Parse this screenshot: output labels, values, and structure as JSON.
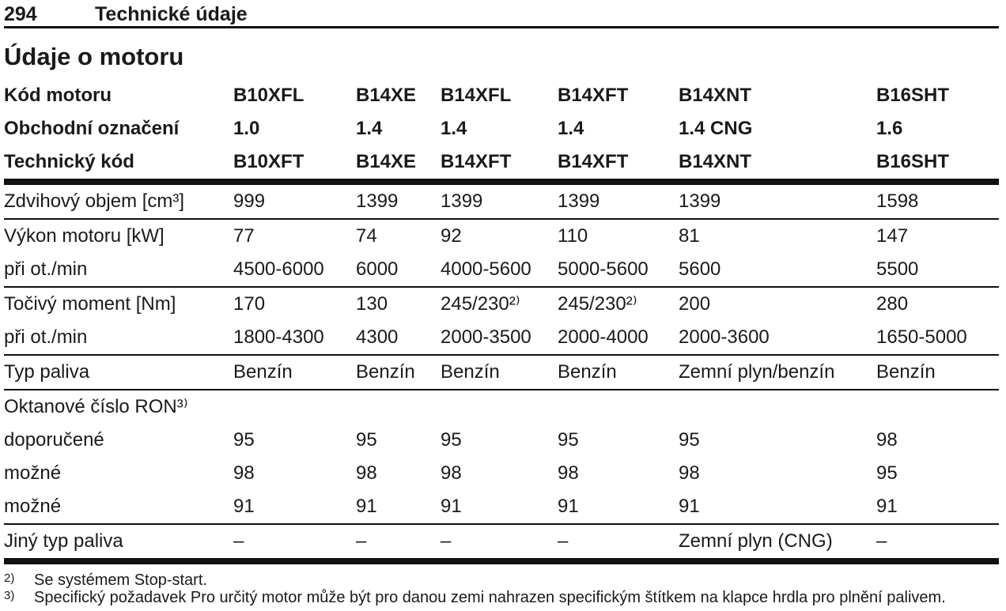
{
  "colors": {
    "text": "#1a1a1a",
    "background": "#ffffff",
    "rule": "#111111"
  },
  "page": {
    "number": "294",
    "chapter": "Technické údaje",
    "section_title": "Údaje o motoru"
  },
  "table": {
    "header_rows": [
      {
        "label": "Kód motoru",
        "values": [
          "B10XFL",
          "B14XE",
          "B14XFL",
          "B14XFT",
          "B14XNT",
          "B16SHT"
        ],
        "rule_after": "none"
      },
      {
        "label": "Obchodní označení",
        "values": [
          "1.0",
          "1.4",
          "1.4",
          "1.4",
          "1.4 CNG",
          "1.6"
        ],
        "rule_after": "none"
      },
      {
        "label": "Technický kód",
        "values": [
          "B10XFT",
          "B14XE",
          "B14XFT",
          "B14XFT",
          "B14XNT",
          "B16SHT"
        ],
        "rule_after": "thick"
      }
    ],
    "rows": [
      {
        "label": "Zdvihový objem [cm³]",
        "values": [
          "999",
          "1399",
          "1399",
          "1399",
          "1399",
          "1598"
        ],
        "rule_after": "thin"
      },
      {
        "label": "Výkon motoru [kW]",
        "values": [
          "77",
          "74",
          "92",
          "110",
          "81",
          "147"
        ],
        "rule_after": "none"
      },
      {
        "label": "při ot./min",
        "values": [
          "4500-6000",
          "6000",
          "4000-5600",
          "5000-5600",
          "5600",
          "5500"
        ],
        "rule_after": "thin"
      },
      {
        "label": "Točivý moment [Nm]",
        "values": [
          "170",
          "130",
          "245/230²⁾",
          "245/230²⁾",
          "200",
          "280"
        ],
        "rule_after": "none"
      },
      {
        "label": "při ot./min",
        "values": [
          "1800-4300",
          "4300",
          "2000-3500",
          "2000-4000",
          "2000-3600",
          "1650-5000"
        ],
        "rule_after": "thin"
      },
      {
        "label": "Typ paliva",
        "values": [
          "Benzín",
          "Benzín",
          "Benzín",
          "Benzín",
          "Zemní plyn/benzín",
          "Benzín"
        ],
        "rule_after": "thin"
      },
      {
        "label": "Oktanové číslo RON³⁾",
        "values": [
          "",
          "",
          "",
          "",
          "",
          ""
        ],
        "rule_after": "none"
      },
      {
        "label": "doporučené",
        "values": [
          "95",
          "95",
          "95",
          "95",
          "95",
          "98"
        ],
        "rule_after": "none"
      },
      {
        "label": "možné",
        "values": [
          "98",
          "98",
          "98",
          "98",
          "98",
          "95"
        ],
        "rule_after": "none"
      },
      {
        "label": "možné",
        "values": [
          "91",
          "91",
          "91",
          "91",
          "91",
          "91"
        ],
        "rule_after": "thin"
      },
      {
        "label": "Jiný typ paliva",
        "values": [
          "–",
          "–",
          "–",
          "–",
          "Zemní plyn (CNG)",
          "–"
        ],
        "rule_after": "thick"
      }
    ]
  },
  "footnotes": [
    {
      "marker": "2)",
      "text": "Se systémem Stop-start."
    },
    {
      "marker": "3)",
      "text": "Specifický požadavek Pro určitý motor může být pro danou zemi nahrazen specifickým štítkem na klapce hrdla pro plnění palivem."
    }
  ]
}
